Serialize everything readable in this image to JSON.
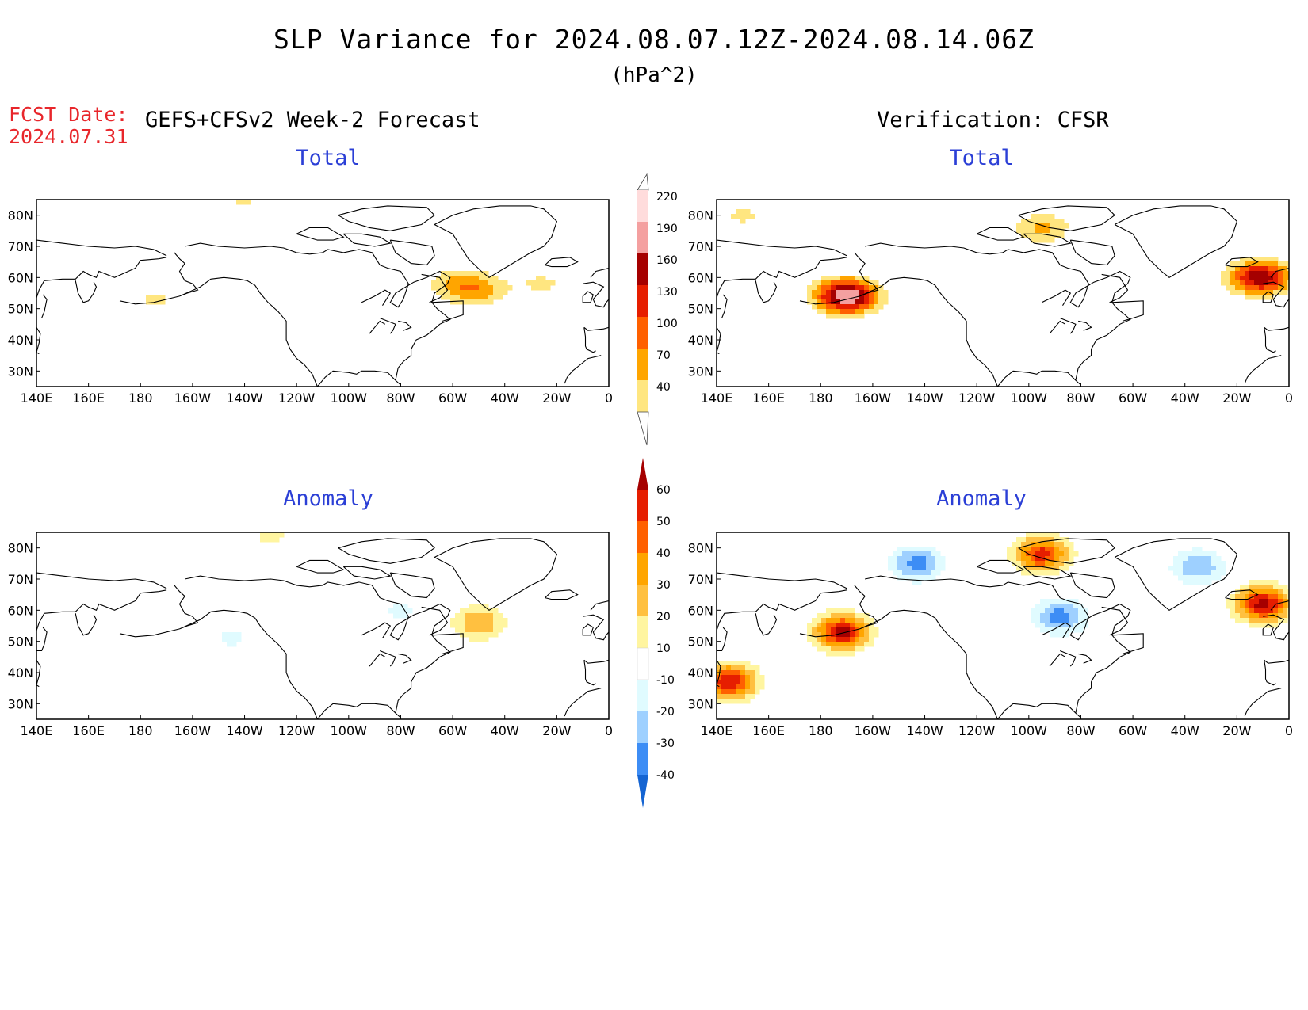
{
  "header": {
    "title": "SLP Variance for 2024.08.07.12Z-2024.08.14.06Z",
    "units": "(hPa^2)",
    "fcst_label": "FCST Date:",
    "fcst_date": "2024.07.31",
    "left_heading": "GEFS+CFSv2 Week-2 Forecast",
    "right_heading": "Verification: CFSR"
  },
  "panels": [
    {
      "id": "forecast-total",
      "title": "Total"
    },
    {
      "id": "verification-total",
      "title": "Total"
    },
    {
      "id": "forecast-anomaly",
      "title": "Anomaly"
    },
    {
      "id": "verification-anomaly",
      "title": "Anomaly"
    }
  ],
  "axes": {
    "lon_labels": [
      "140E",
      "160E",
      "180",
      "160W",
      "140W",
      "120W",
      "100W",
      "80W",
      "60W",
      "40W",
      "20W",
      "0"
    ],
    "lat_labels": [
      "80N",
      "70N",
      "60N",
      "50N",
      "40N",
      "30N"
    ],
    "lon_range": [
      140,
      360
    ],
    "lat_range": [
      25,
      85
    ]
  },
  "total_colorbar": {
    "levels": [
      "40",
      "70",
      "100",
      "130",
      "160",
      "190",
      "220"
    ],
    "colors": [
      "#ffe680",
      "#ffa500",
      "#ff6000",
      "#e61e00",
      "#a50000",
      "#f4a0a0",
      "#ffdcdc"
    ]
  },
  "anomaly_colorbar": {
    "levels": [
      "60",
      "50",
      "40",
      "30",
      "20",
      "10",
      "-10",
      "-20",
      "-30",
      "-40"
    ],
    "colors": [
      "#a50000",
      "#e61e00",
      "#ff6000",
      "#ffa500",
      "#ffc040",
      "#fff5a0",
      "#ffffff",
      "#e0fbff",
      "#9ed0ff",
      "#3d8df5",
      "#1464d2"
    ]
  },
  "chart_data": {
    "type": "heatmap",
    "variable": "SLP variance",
    "forecast_total_features": [
      {
        "lon": 185,
        "lat": 53,
        "value": 45
      },
      {
        "lon": 300,
        "lat": 58,
        "value": 55
      },
      {
        "lon": 310,
        "lat": 56,
        "value": 75
      },
      {
        "lon": 335,
        "lat": 58,
        "value": 45
      },
      {
        "lon": 220,
        "lat": 84,
        "value": 42
      }
    ],
    "verification_total_features": [
      {
        "lon": 190,
        "lat": 54,
        "value": 225
      },
      {
        "lon": 349,
        "lat": 60,
        "value": 185
      },
      {
        "lon": 265,
        "lat": 76,
        "value": 75
      },
      {
        "lon": 150,
        "lat": 80,
        "value": 45
      }
    ],
    "forecast_anomaly_features": [
      {
        "lon": 310,
        "lat": 56,
        "value": 30
      },
      {
        "lon": 230,
        "lat": 84,
        "value": 12
      },
      {
        "lon": 280,
        "lat": 60,
        "value": -12
      },
      {
        "lon": 215,
        "lat": 51,
        "value": -12
      }
    ],
    "verification_anomaly_features": [
      {
        "lon": 188,
        "lat": 53,
        "value": 65
      },
      {
        "lon": 350,
        "lat": 62,
        "value": 65
      },
      {
        "lon": 265,
        "lat": 78,
        "value": 55
      },
      {
        "lon": 217,
        "lat": 75,
        "value": -35
      },
      {
        "lon": 272,
        "lat": 58,
        "value": -35
      },
      {
        "lon": 325,
        "lat": 74,
        "value": -30
      },
      {
        "lon": 145,
        "lat": 37,
        "value": 60
      }
    ]
  }
}
